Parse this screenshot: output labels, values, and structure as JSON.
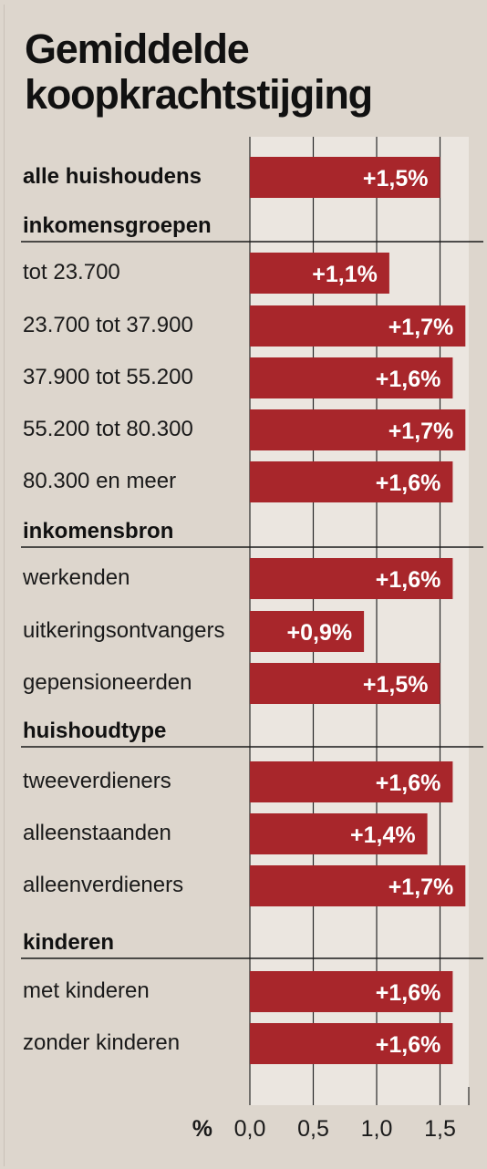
{
  "title_lines": [
    "Gemiddelde",
    "koopkrachtstijging"
  ],
  "chart_data": {
    "type": "bar",
    "orientation": "horizontal",
    "unit_label": "%",
    "xlim": [
      0,
      1.75
    ],
    "xticks": [
      0.0,
      0.5,
      1.0,
      1.5
    ],
    "xtick_labels": [
      "0,0",
      "0,5",
      "1,0",
      "1,5"
    ],
    "rows": [
      {
        "kind": "bar",
        "label": "alle huishoudens",
        "bold": true,
        "value": 1.5,
        "value_label": "+1,5%"
      },
      {
        "kind": "header",
        "label": "inkomensgroepen"
      },
      {
        "kind": "bar",
        "label": "tot 23.700",
        "value": 1.1,
        "value_label": "+1,1%"
      },
      {
        "kind": "bar",
        "label": "23.700 tot 37.900",
        "value": 1.7,
        "value_label": "+1,7%"
      },
      {
        "kind": "bar",
        "label": "37.900 tot 55.200",
        "value": 1.6,
        "value_label": "+1,6%"
      },
      {
        "kind": "bar",
        "label": "55.200 tot 80.300",
        "value": 1.7,
        "value_label": "+1,7%"
      },
      {
        "kind": "bar",
        "label": "80.300 en meer",
        "value": 1.6,
        "value_label": "+1,6%"
      },
      {
        "kind": "header",
        "label": "inkomensbron"
      },
      {
        "kind": "bar",
        "label": "werkenden",
        "value": 1.6,
        "value_label": "+1,6%"
      },
      {
        "kind": "bar",
        "label": "uitkeringsontvangers",
        "value": 0.9,
        "value_label": "+0,9%"
      },
      {
        "kind": "bar",
        "label": "gepensioneerden",
        "value": 1.5,
        "value_label": "+1,5%"
      },
      {
        "kind": "header",
        "label": "huishoudtype"
      },
      {
        "kind": "bar",
        "label": "tweeverdieners",
        "value": 1.6,
        "value_label": "+1,6%"
      },
      {
        "kind": "bar",
        "label": "alleenstaanden",
        "value": 1.4,
        "value_label": "+1,4%"
      },
      {
        "kind": "bar",
        "label": "alleenverdieners",
        "value": 1.7,
        "value_label": "+1,7%"
      },
      {
        "kind": "header",
        "label": "kinderen"
      },
      {
        "kind": "bar",
        "label": "met kinderen",
        "value": 1.6,
        "value_label": "+1,6%"
      },
      {
        "kind": "bar",
        "label": "zonder kinderen",
        "value": 1.6,
        "value_label": "+1,6%"
      }
    ]
  },
  "colors": {
    "background": "#ddd6cd",
    "plot_area": "#ebe6e0",
    "bar": "#a8262b",
    "bar_text": "#ffffff",
    "text": "#111111",
    "gridline": "#2a2a2a"
  }
}
